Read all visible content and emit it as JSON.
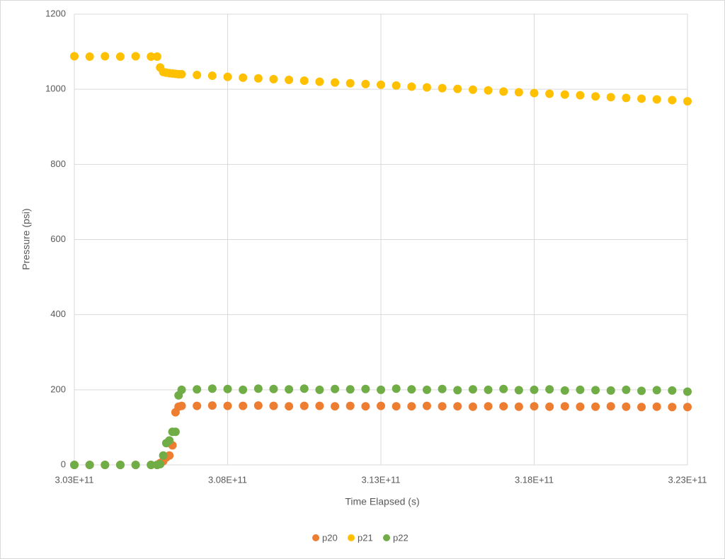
{
  "chart_data": {
    "type": "scatter",
    "x_label": "Time Elapsed (s)",
    "y_label": "Pressure (psi)",
    "x": [
      303000000000,
      303500000000,
      304000000000,
      304500000000,
      305000000000,
      305500000000,
      305700000000,
      305800000000,
      305900000000,
      306000000000,
      306100000000,
      306200000000,
      306300000000,
      306400000000,
      306500000000,
      307000000000,
      307500000000,
      308000000000,
      308500000000,
      309000000000,
      309500000000,
      310000000000,
      310500000000,
      311000000000,
      311500000000,
      312000000000,
      312500000000,
      313000000000,
      313500000000,
      314000000000,
      314500000000,
      315000000000,
      315500000000,
      316000000000,
      316500000000,
      317000000000,
      317500000000,
      318000000000,
      318500000000,
      319000000000,
      319500000000,
      320000000000,
      320500000000,
      321000000000,
      321500000000,
      322000000000,
      322500000000,
      323000000000
    ],
    "series": [
      {
        "name": "p20",
        "color": "#ed7d31",
        "values": [
          0,
          0,
          0,
          0,
          0,
          0,
          0,
          5,
          10,
          20,
          25,
          52,
          140,
          155,
          157,
          157,
          158,
          157,
          157,
          158,
          157,
          156,
          157,
          157,
          156,
          157,
          156,
          157,
          156,
          156,
          157,
          156,
          156,
          155,
          156,
          156,
          155,
          156,
          155,
          156,
          155,
          155,
          156,
          155,
          154,
          155,
          154,
          154
        ]
      },
      {
        "name": "p21",
        "color": "#ffc000",
        "values": [
          1088,
          1087,
          1088,
          1087,
          1088,
          1087,
          1087,
          1058,
          1046,
          1044,
          1043,
          1042,
          1041,
          1040,
          1040,
          1038,
          1036,
          1033,
          1031,
          1029,
          1027,
          1025,
          1023,
          1020,
          1018,
          1016,
          1014,
          1012,
          1010,
          1007,
          1005,
          1003,
          1001,
          999,
          997,
          994,
          992,
          990,
          988,
          986,
          984,
          981,
          979,
          977,
          975,
          973,
          971,
          968
        ]
      },
      {
        "name": "p22",
        "color": "#70ad47",
        "values": [
          0,
          0,
          0,
          0,
          0,
          0,
          0,
          2,
          25,
          58,
          65,
          88,
          88,
          185,
          200,
          201,
          203,
          202,
          200,
          203,
          202,
          201,
          203,
          200,
          202,
          201,
          202,
          200,
          203,
          201,
          200,
          202,
          199,
          201,
          200,
          202,
          199,
          200,
          201,
          198,
          200,
          199,
          198,
          200,
          197,
          199,
          198,
          195
        ]
      }
    ],
    "xlim": [
      303000000000,
      323000000000
    ],
    "xticks": [
      {
        "value": 303000000000,
        "label": "3.03E+11"
      },
      {
        "value": 308000000000,
        "label": "3.08E+11"
      },
      {
        "value": 313000000000,
        "label": "3.13E+11"
      },
      {
        "value": 318000000000,
        "label": "3.18E+11"
      },
      {
        "value": 323000000000,
        "label": "3.23E+11"
      }
    ],
    "ylim": [
      0,
      1200
    ],
    "yticks": [
      0,
      200,
      400,
      600,
      800,
      1000,
      1200
    ],
    "grid": true,
    "legend": "bottom"
  }
}
